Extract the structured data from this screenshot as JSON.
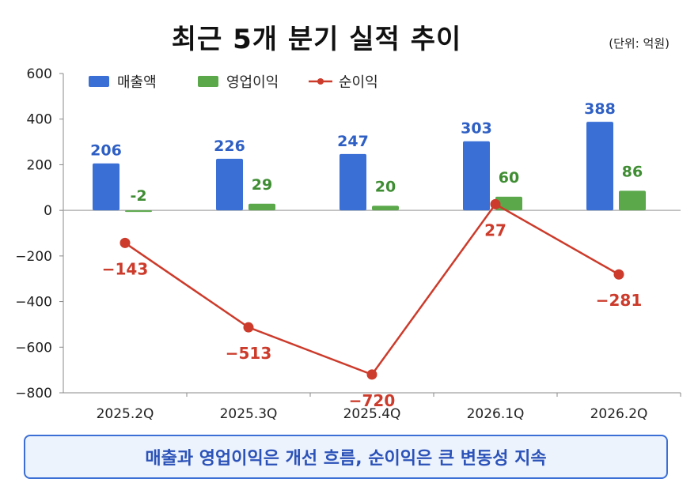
{
  "title": "최근 5개 분기 실적 추이",
  "unit_note": "(단위: 억원)",
  "summary": "매출과 영업이익은 개선 흐름, 순이익은 큰 변동성 지속",
  "colors": {
    "revenue": "#3a6fd6",
    "operating": "#5aa84a",
    "net": "#cc3b2b",
    "axis": "#444444"
  },
  "chart_data": {
    "type": "bar+line",
    "categories": [
      "2025.2Q",
      "2025.3Q",
      "2025.4Q",
      "2026.1Q",
      "2026.2Q"
    ],
    "ylim": [
      -800,
      600
    ],
    "yticks": [
      "600",
      "400",
      "200",
      "0",
      "−200",
      "−400",
      "−600",
      "−800"
    ],
    "ytick_values": [
      600,
      400,
      200,
      0,
      -200,
      -400,
      -600,
      -800
    ],
    "legend_position": "top-left",
    "grid": false,
    "series": [
      {
        "name": "매출액",
        "kind": "bar",
        "values": [
          206,
          226,
          247,
          303,
          388
        ],
        "labels": [
          "206",
          "226",
          "247",
          "303",
          "388"
        ]
      },
      {
        "name": "영업이익",
        "kind": "bar",
        "values": [
          -2,
          29,
          20,
          60,
          86
        ],
        "labels": [
          "-2",
          "29",
          "20",
          "60",
          "86"
        ]
      },
      {
        "name": "순이익",
        "kind": "line",
        "values": [
          -143,
          -513,
          -720,
          27,
          -281
        ],
        "labels": [
          "−143",
          "−513",
          "−720",
          "27",
          "−281"
        ]
      }
    ]
  }
}
